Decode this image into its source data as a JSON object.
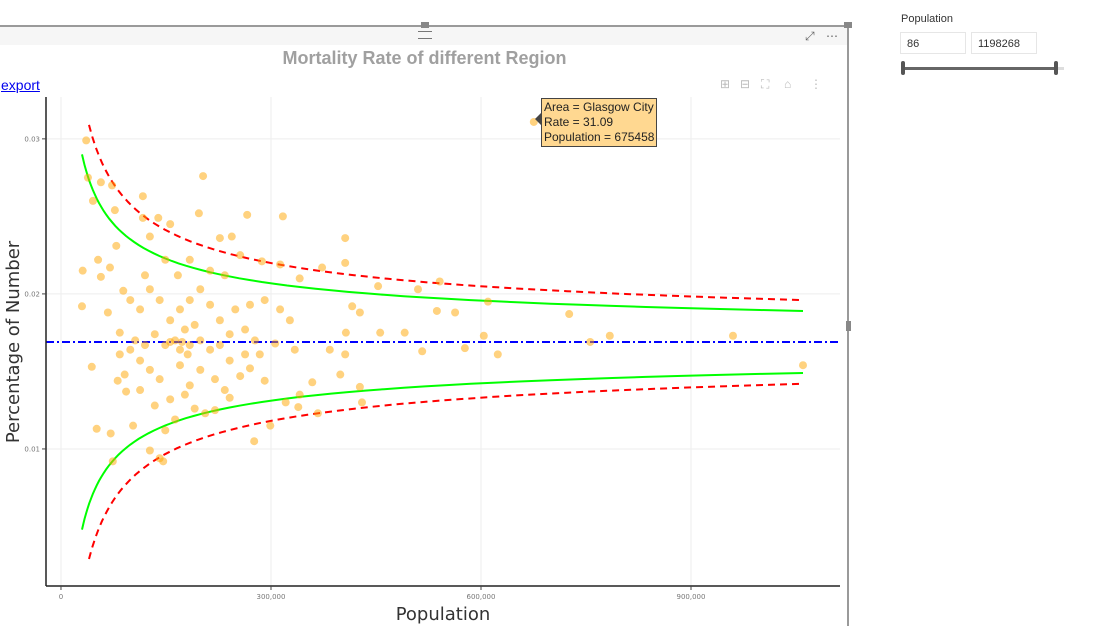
{
  "visual": {
    "title": "Mortality Rate of different Region",
    "export_label": "export",
    "focus_icon": "focus-mode-icon",
    "more_label": "⋯"
  },
  "modebar": [
    "zoom-in-icon",
    "zoom-out-icon",
    "autoscale-icon",
    "home-icon",
    "spike-lines-icon"
  ],
  "tooltip": {
    "line1": "Area = Glasgow City",
    "line2": "Rate = 31.09",
    "line3": "Population = 675458"
  },
  "slicer": {
    "label": "Population",
    "min_value": "86",
    "max_value": "1198268",
    "range_fraction": [
      0,
      1
    ]
  },
  "chart_data": {
    "type": "scatter",
    "xlabel": "Population",
    "ylabel": "Percentage of Number",
    "xlim": [
      -21400,
      1112857
    ],
    "ylim": [
      0.00116,
      0.0327
    ],
    "xticks": [
      {
        "v": 0,
        "label": "0"
      },
      {
        "v": 300000,
        "label": "300,000"
      },
      {
        "v": 600000,
        "label": "600,000"
      },
      {
        "v": 900000,
        "label": "900,000"
      }
    ],
    "yticks": [
      {
        "v": 0.01,
        "label": "0.01"
      },
      {
        "v": 0.02,
        "label": "0.02"
      },
      {
        "v": 0.03,
        "label": "0.03"
      }
    ],
    "grid": true,
    "colors": {
      "points": "#FFA500",
      "target": "#0000FF",
      "limit95": "#00FF00",
      "limit99": "#FF0000"
    },
    "target": 0.0169,
    "limit95": {
      "x": [
        30000,
        50000,
        75000,
        100000,
        150000,
        200000,
        300000,
        400000,
        600000,
        800000,
        1060000
      ],
      "upper": [
        0.029,
        0.0263,
        0.0246,
        0.0235,
        0.0223,
        0.0216,
        0.0207,
        0.0202,
        0.0196,
        0.0193,
        0.0189
      ],
      "lower": [
        0.0048,
        0.0075,
        0.0092,
        0.0103,
        0.0115,
        0.0122,
        0.0131,
        0.0136,
        0.0142,
        0.0146,
        0.0149
      ]
    },
    "limit99": {
      "x": [
        40000,
        50000,
        75000,
        100000,
        150000,
        200000,
        300000,
        400000,
        600000,
        800000,
        1060000
      ],
      "upper": [
        0.0309,
        0.0294,
        0.0271,
        0.0258,
        0.0241,
        0.0232,
        0.022,
        0.0213,
        0.0205,
        0.02,
        0.0196
      ],
      "lower": [
        0.0029,
        0.0044,
        0.0067,
        0.0081,
        0.0097,
        0.0106,
        0.0118,
        0.0125,
        0.0133,
        0.0138,
        0.0142
      ]
    },
    "points": [
      [
        675458,
        0.03109
      ],
      [
        36000,
        0.0299
      ],
      [
        38500,
        0.0275
      ],
      [
        45700,
        0.026
      ],
      [
        57000,
        0.0272
      ],
      [
        73000,
        0.027
      ],
      [
        31000,
        0.0215
      ],
      [
        30000,
        0.0192
      ],
      [
        44000,
        0.0153
      ],
      [
        51000,
        0.0113
      ],
      [
        71000,
        0.011
      ],
      [
        74000,
        0.0092
      ],
      [
        53000,
        0.0222
      ],
      [
        57000,
        0.0211
      ],
      [
        70000,
        0.0217
      ],
      [
        77000,
        0.0254
      ],
      [
        79000,
        0.0231
      ],
      [
        89000,
        0.0202
      ],
      [
        67000,
        0.0188
      ],
      [
        84000,
        0.0175
      ],
      [
        81000,
        0.0144
      ],
      [
        93000,
        0.0137
      ],
      [
        103000,
        0.0115
      ],
      [
        127000,
        0.0099
      ],
      [
        141000,
        0.0094
      ],
      [
        146000,
        0.0092
      ],
      [
        117000,
        0.0263
      ],
      [
        117000,
        0.0249
      ],
      [
        127000,
        0.0237
      ],
      [
        139000,
        0.0249
      ],
      [
        156000,
        0.0245
      ],
      [
        203000,
        0.0276
      ],
      [
        197000,
        0.0252
      ],
      [
        266000,
        0.0251
      ],
      [
        317000,
        0.025
      ],
      [
        244000,
        0.0237
      ],
      [
        227000,
        0.0236
      ],
      [
        406000,
        0.0236
      ],
      [
        256000,
        0.0225
      ],
      [
        287000,
        0.0221
      ],
      [
        313000,
        0.0219
      ],
      [
        373000,
        0.0217
      ],
      [
        406000,
        0.022
      ],
      [
        341000,
        0.021
      ],
      [
        453000,
        0.0205
      ],
      [
        510000,
        0.0203
      ],
      [
        541000,
        0.0208
      ],
      [
        610000,
        0.0195
      ],
      [
        416000,
        0.0192
      ],
      [
        427000,
        0.0188
      ],
      [
        537000,
        0.0189
      ],
      [
        563000,
        0.0188
      ],
      [
        726000,
        0.0187
      ],
      [
        784000,
        0.0173
      ],
      [
        960000,
        0.0173
      ],
      [
        1060000,
        0.0154
      ],
      [
        604000,
        0.0173
      ],
      [
        491000,
        0.0175
      ],
      [
        456000,
        0.0175
      ],
      [
        407000,
        0.0175
      ],
      [
        384000,
        0.0164
      ],
      [
        406000,
        0.0161
      ],
      [
        516000,
        0.0163
      ],
      [
        577000,
        0.0165
      ],
      [
        624000,
        0.0161
      ],
      [
        756000,
        0.0169
      ],
      [
        399000,
        0.0148
      ],
      [
        427000,
        0.014
      ],
      [
        430000,
        0.013
      ],
      [
        367000,
        0.0123
      ],
      [
        339000,
        0.0127
      ],
      [
        321000,
        0.013
      ],
      [
        299000,
        0.0115
      ],
      [
        276000,
        0.0105
      ],
      [
        291000,
        0.0144
      ],
      [
        359000,
        0.0143
      ],
      [
        334000,
        0.0164
      ],
      [
        306000,
        0.0168
      ],
      [
        284000,
        0.0161
      ],
      [
        270000,
        0.0152
      ],
      [
        256000,
        0.0147
      ],
      [
        234000,
        0.0138
      ],
      [
        220000,
        0.0125
      ],
      [
        206000,
        0.0123
      ],
      [
        191000,
        0.0126
      ],
      [
        177000,
        0.0135
      ],
      [
        156000,
        0.0132
      ],
      [
        141000,
        0.0145
      ],
      [
        127000,
        0.0151
      ],
      [
        113000,
        0.0157
      ],
      [
        99000,
        0.0164
      ],
      [
        106000,
        0.017
      ],
      [
        120000,
        0.0167
      ],
      [
        134000,
        0.0174
      ],
      [
        149000,
        0.0167
      ],
      [
        163000,
        0.017
      ],
      [
        170000,
        0.0164
      ],
      [
        184000,
        0.0167
      ],
      [
        199000,
        0.017
      ],
      [
        213000,
        0.0164
      ],
      [
        227000,
        0.0167
      ],
      [
        241000,
        0.0174
      ],
      [
        263000,
        0.0177
      ],
      [
        156000,
        0.0183
      ],
      [
        170000,
        0.019
      ],
      [
        184000,
        0.0196
      ],
      [
        141000,
        0.0196
      ],
      [
        127000,
        0.0203
      ],
      [
        113000,
        0.019
      ],
      [
        99000,
        0.0196
      ],
      [
        199000,
        0.0203
      ],
      [
        213000,
        0.0193
      ],
      [
        227000,
        0.0183
      ],
      [
        249000,
        0.019
      ],
      [
        270000,
        0.0193
      ],
      [
        291000,
        0.0196
      ],
      [
        313000,
        0.019
      ],
      [
        327000,
        0.0183
      ],
      [
        167000,
        0.0212
      ],
      [
        184000,
        0.0222
      ],
      [
        149000,
        0.0222
      ],
      [
        120000,
        0.0212
      ],
      [
        213000,
        0.0215
      ],
      [
        234000,
        0.0212
      ],
      [
        84000,
        0.0161
      ],
      [
        91000,
        0.0148
      ],
      [
        113000,
        0.0138
      ],
      [
        134000,
        0.0128
      ],
      [
        163000,
        0.0119
      ],
      [
        149000,
        0.0112
      ],
      [
        184000,
        0.0141
      ],
      [
        199000,
        0.0151
      ],
      [
        220000,
        0.0145
      ],
      [
        170000,
        0.0154
      ],
      [
        177000,
        0.0177
      ],
      [
        191000,
        0.018
      ],
      [
        156000,
        0.0169
      ],
      [
        173000,
        0.0169
      ],
      [
        181000,
        0.0161
      ],
      [
        241000,
        0.0157
      ],
      [
        263000,
        0.0161
      ],
      [
        277000,
        0.017
      ],
      [
        241000,
        0.0133
      ],
      [
        341000,
        0.0135
      ]
    ]
  }
}
